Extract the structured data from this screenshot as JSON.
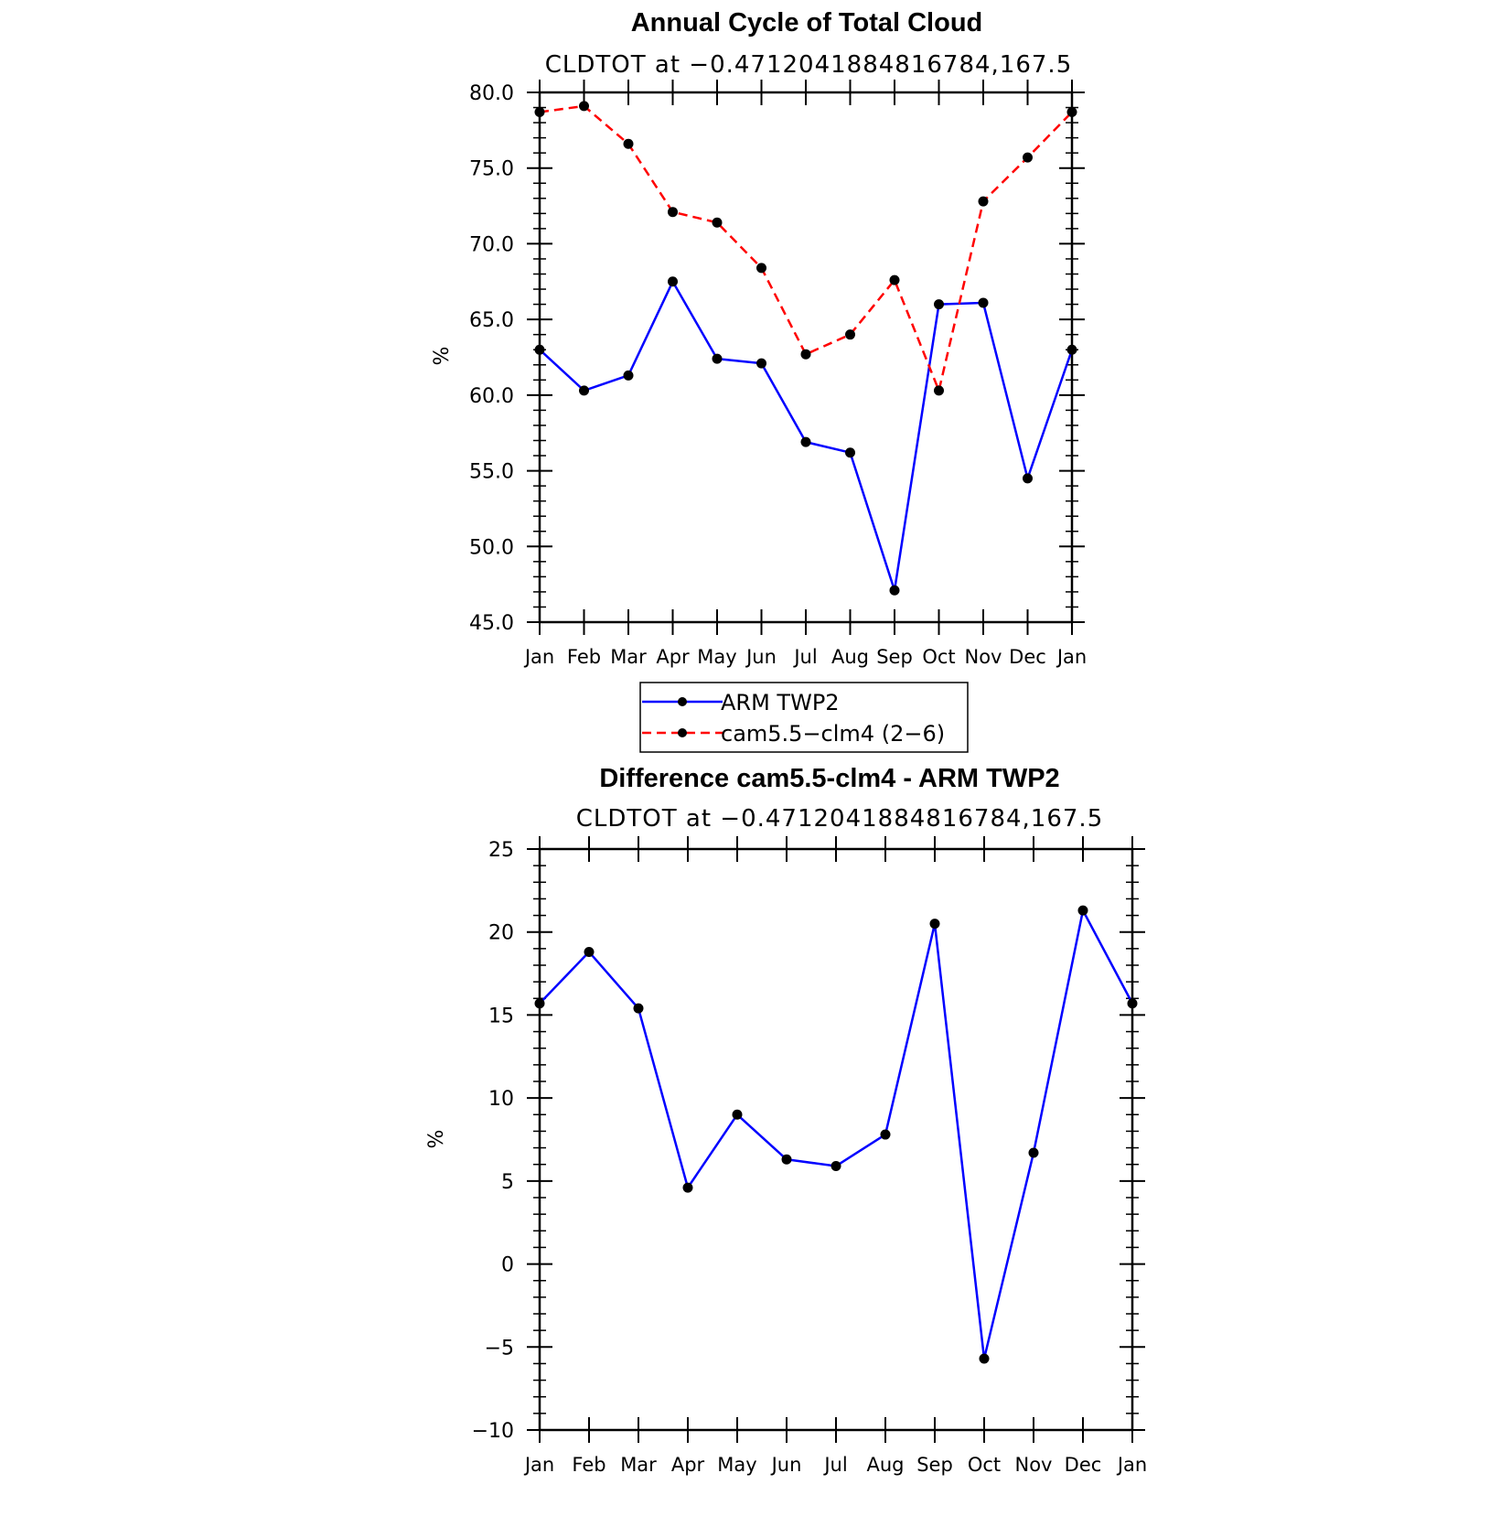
{
  "chart_data": [
    {
      "type": "line",
      "title": "Annual Cycle of Total Cloud",
      "subtitle": "CLDTOT at −0.4712041884816784,167.5",
      "ylabel": "%",
      "xlabel": "",
      "categories": [
        "Jan",
        "Feb",
        "Mar",
        "Apr",
        "May",
        "Jun",
        "Jul",
        "Aug",
        "Sep",
        "Oct",
        "Nov",
        "Dec",
        "Jan"
      ],
      "ylim": [
        45,
        80
      ],
      "yticks": [
        45,
        50,
        55,
        60,
        65,
        70,
        75,
        80
      ],
      "ytick_labels": [
        "45.0",
        "50.0",
        "55.0",
        "60.0",
        "65.0",
        "70.0",
        "75.0",
        "80.0"
      ],
      "series": [
        {
          "name": "ARM TWP2",
          "color": "#0000ff",
          "dash": "solid",
          "values": [
            63.0,
            60.3,
            61.3,
            67.5,
            62.4,
            62.1,
            56.9,
            56.2,
            47.1,
            66.0,
            66.1,
            54.5,
            63.0
          ]
        },
        {
          "name": "cam5.5−clm4 (2−6)",
          "color": "#ff0000",
          "dash": "dashed",
          "values": [
            78.7,
            79.1,
            76.6,
            72.1,
            71.4,
            68.4,
            62.7,
            64.0,
            67.6,
            60.3,
            72.8,
            75.7,
            78.7
          ]
        }
      ],
      "legend_position": "below"
    },
    {
      "type": "line",
      "title": "Difference cam5.5-clm4 - ARM TWP2",
      "subtitle": "CLDTOT at −0.4712041884816784,167.5",
      "ylabel": "%",
      "xlabel": "",
      "categories": [
        "Jan",
        "Feb",
        "Mar",
        "Apr",
        "May",
        "Jun",
        "Jul",
        "Aug",
        "Sep",
        "Oct",
        "Nov",
        "Dec",
        "Jan"
      ],
      "ylim": [
        -10,
        25
      ],
      "yticks": [
        -10,
        -5,
        0,
        5,
        10,
        15,
        20,
        25
      ],
      "ytick_labels": [
        "−10",
        "−5",
        "0",
        "5",
        "10",
        "15",
        "20",
        "25"
      ],
      "series": [
        {
          "name": "",
          "color": "#0000ff",
          "dash": "solid",
          "values": [
            15.7,
            18.8,
            15.4,
            4.6,
            9.0,
            6.3,
            5.9,
            7.8,
            20.5,
            -5.7,
            6.7,
            21.3,
            15.7
          ]
        }
      ]
    }
  ]
}
